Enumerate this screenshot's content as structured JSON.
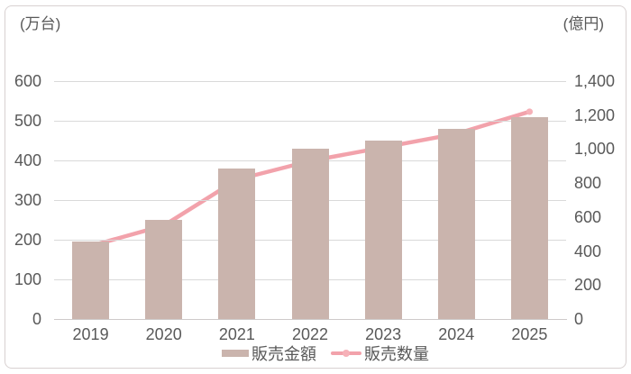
{
  "chart_data": {
    "type": "bar+line combo",
    "categories": [
      "2019",
      "2020",
      "2021",
      "2022",
      "2023",
      "2024",
      "2025"
    ],
    "series": [
      {
        "name": "販売金額",
        "type": "bar",
        "axis": "left",
        "values": [
          195,
          250,
          380,
          430,
          450,
          480,
          510
        ],
        "color": "#cab4ad"
      },
      {
        "name": "販売数量",
        "type": "line",
        "axis": "right",
        "values": [
          430,
          550,
          820,
          930,
          1010,
          1090,
          1220
        ],
        "color": "#f2a2ab",
        "marker_color": "#f6b1b8"
      }
    ],
    "left_axis": {
      "label": "(万台)",
      "min": 0,
      "max": 600,
      "step": 100,
      "ticks": [
        "0",
        "100",
        "200",
        "300",
        "400",
        "500",
        "600"
      ]
    },
    "right_axis": {
      "label": "(億円)",
      "min": 0,
      "max": 1400,
      "step": 200,
      "ticks": [
        "0",
        "200",
        "400",
        "600",
        "800",
        "1,000",
        "1,200",
        "1,400"
      ]
    },
    "legend": [
      "販売金額",
      "販売数量"
    ],
    "legend_position": "bottom",
    "grid": true,
    "title": "",
    "xlabel": "",
    "ylabel_left": "万台",
    "ylabel_right": "億円"
  },
  "colors": {
    "bar_fill": "#cab4ad",
    "line_stroke": "#f2a2ab",
    "marker_fill": "#f6b1b8",
    "grid": "#d9d9d9",
    "axis_line": "#cecaca",
    "text": "#595959",
    "frame_border": "#d8d1d1",
    "background": "#ffffff"
  }
}
